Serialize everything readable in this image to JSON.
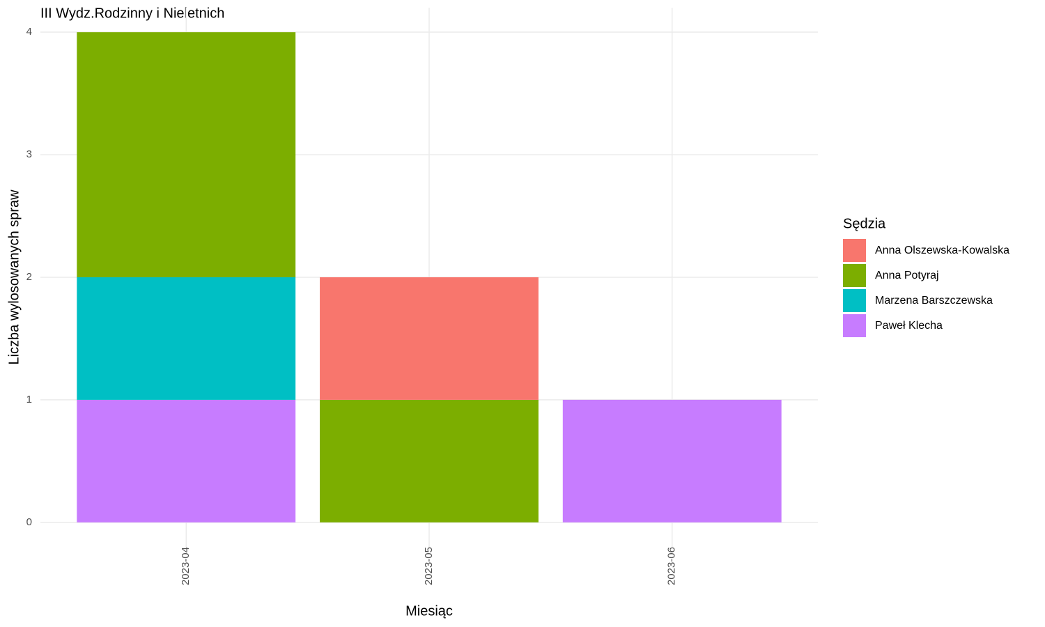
{
  "chart_data": {
    "type": "stacked-bar",
    "title": "III Wydz.Rodzinny i Nieletnich",
    "x_label": "Miesiąc",
    "y_label": "Liczba wylosowanych spraw",
    "legend_title": "Sędzia",
    "categories": [
      "2023-04",
      "2023-05",
      "2023-06"
    ],
    "series": [
      {
        "name": "Anna Olszewska-Kowalska",
        "color": "#F8766D",
        "values": [
          0,
          1,
          0
        ]
      },
      {
        "name": "Anna Potyraj",
        "color": "#7CAE00",
        "values": [
          2,
          1,
          0
        ]
      },
      {
        "name": "Marzena Barszczewska",
        "color": "#00BFC4",
        "values": [
          1,
          0,
          0
        ]
      },
      {
        "name": "Paweł Klecha",
        "color": "#C77CFF",
        "values": [
          1,
          0,
          1
        ]
      }
    ],
    "ylim": [
      -0.2,
      4.2
    ],
    "yticks": [
      0,
      1,
      2,
      3,
      4
    ],
    "grid": true,
    "legend_position": "right"
  }
}
